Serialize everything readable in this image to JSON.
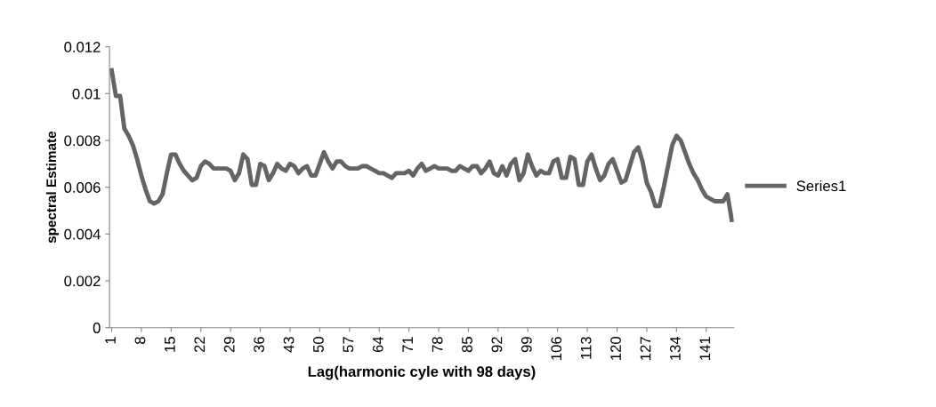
{
  "chart_data": {
    "type": "line",
    "xlabel": "Lag(harmonic cyle with 98 days)",
    "ylabel": "spectral Estimate",
    "categories": [
      "1",
      null,
      null,
      null,
      null,
      null,
      null,
      "8",
      null,
      null,
      null,
      null,
      null,
      null,
      "15",
      null,
      null,
      null,
      null,
      null,
      null,
      "22",
      null,
      null,
      null,
      null,
      null,
      null,
      "29",
      null,
      null,
      null,
      null,
      null,
      null,
      "36",
      null,
      null,
      null,
      null,
      null,
      null,
      "43",
      null,
      null,
      null,
      null,
      null,
      null,
      "50",
      null,
      null,
      null,
      null,
      null,
      null,
      "57",
      null,
      null,
      null,
      null,
      null,
      null,
      "64",
      null,
      null,
      null,
      null,
      null,
      null,
      "71",
      null,
      null,
      null,
      null,
      null,
      null,
      "78",
      null,
      null,
      null,
      null,
      null,
      null,
      "85",
      null,
      null,
      null,
      null,
      null,
      null,
      "92",
      null,
      null,
      null,
      null,
      null,
      null,
      "99",
      null,
      null,
      null,
      null,
      null,
      null,
      "106",
      null,
      null,
      null,
      null,
      null,
      null,
      "113",
      null,
      null,
      null,
      null,
      null,
      null,
      "120",
      null,
      null,
      null,
      null,
      null,
      null,
      "127",
      null,
      null,
      null,
      null,
      null,
      null,
      "134",
      null,
      null,
      null,
      null,
      null,
      null,
      "141",
      null,
      null,
      null,
      null,
      null,
      null
    ],
    "series": [
      {
        "name": "Series1",
        "color": "#646464",
        "values": [
          0.011,
          0.0099,
          0.0099,
          0.0085,
          0.0082,
          0.0078,
          0.0072,
          0.0065,
          0.0059,
          0.0054,
          0.0053,
          0.0054,
          0.0057,
          0.0066,
          0.0074,
          0.0074,
          0.007,
          0.0067,
          0.0065,
          0.0063,
          0.0064,
          0.0069,
          0.0071,
          0.007,
          0.0068,
          0.0068,
          0.0068,
          0.0068,
          0.0067,
          0.0063,
          0.0066,
          0.0074,
          0.0072,
          0.0061,
          0.0061,
          0.007,
          0.0069,
          0.0063,
          0.0066,
          0.007,
          0.0068,
          0.0067,
          0.007,
          0.0069,
          0.0066,
          0.0068,
          0.0069,
          0.0065,
          0.0065,
          0.007,
          0.0075,
          0.0071,
          0.0068,
          0.0071,
          0.0071,
          0.0069,
          0.0068,
          0.0068,
          0.0068,
          0.0069,
          0.0069,
          0.0068,
          0.0067,
          0.0066,
          0.0066,
          0.0065,
          0.0064,
          0.0066,
          0.0066,
          0.0066,
          0.0067,
          0.0065,
          0.0068,
          0.007,
          0.0067,
          0.0068,
          0.0069,
          0.0068,
          0.0068,
          0.0068,
          0.0067,
          0.0067,
          0.0069,
          0.0068,
          0.0067,
          0.0069,
          0.0069,
          0.0066,
          0.0068,
          0.0071,
          0.0066,
          0.0065,
          0.0069,
          0.0065,
          0.007,
          0.0072,
          0.0063,
          0.0066,
          0.0074,
          0.0069,
          0.0065,
          0.0067,
          0.0066,
          0.0066,
          0.0071,
          0.0072,
          0.0064,
          0.0064,
          0.0073,
          0.0072,
          0.0061,
          0.0061,
          0.0071,
          0.0074,
          0.0068,
          0.0063,
          0.0065,
          0.007,
          0.0072,
          0.0067,
          0.0062,
          0.0063,
          0.0069,
          0.0075,
          0.0077,
          0.0071,
          0.0062,
          0.0058,
          0.0052,
          0.0052,
          0.006,
          0.0069,
          0.0078,
          0.0082,
          0.008,
          0.0075,
          0.007,
          0.0066,
          0.0063,
          0.0059,
          0.0056,
          0.0055,
          0.0054,
          0.0054,
          0.0054,
          0.0057,
          0.0046
        ]
      }
    ],
    "ylim": [
      0,
      0.012
    ],
    "yticks": [
      0,
      {
        "value": 0.002,
        "label": "0.002"
      },
      {
        "value": 0.004,
        "label": "0.004"
      },
      {
        "value": 0.006,
        "label": "0.006"
      },
      {
        "value": 0.008,
        "label": "0.008"
      },
      {
        "value": 0.01,
        "label": "0.01"
      },
      {
        "value": 0.012,
        "label": "0.012"
      }
    ],
    "grid": false,
    "legend": "right",
    "marker": "none",
    "line_style": "solid"
  }
}
